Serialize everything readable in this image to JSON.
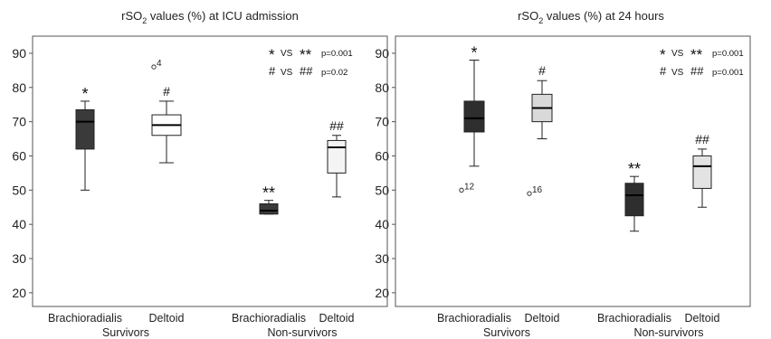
{
  "chart_data": [
    {
      "type": "box",
      "title_parts": [
        "rSO",
        "2",
        " values (%) at ICU admission"
      ],
      "yticks": [
        20,
        30,
        40,
        50,
        60,
        70,
        80,
        90
      ],
      "ylim": [
        16,
        95
      ],
      "categories": [
        "Brachioradialis",
        "Deltoid",
        "Brachioradialis",
        "Deltoid"
      ],
      "groups": [
        "Survivors",
        "Non-survivors"
      ],
      "legend_lines": [
        {
          "a": "*",
          "vs": "VS",
          "b": "**",
          "p": "p=0.001"
        },
        {
          "a": "#",
          "vs": "VS",
          "b": "##",
          "p": "p=0.02"
        }
      ],
      "boxes": [
        {
          "category": "Brachioradialis",
          "group": "Survivors",
          "whisker_low": 50,
          "q1": 62,
          "median": 70,
          "q3": 73.5,
          "whisker_high": 76,
          "marker": "*",
          "color": "#3a3a3a",
          "outliers": []
        },
        {
          "category": "Deltoid",
          "group": "Survivors",
          "whisker_low": 58,
          "q1": 66,
          "median": 69,
          "q3": 72,
          "whisker_high": 76,
          "marker": "#",
          "color": "#ffffff",
          "outliers": [
            {
              "value": 86,
              "label": "4"
            }
          ]
        },
        {
          "category": "Brachioradialis",
          "group": "Non-survivors",
          "whisker_low": 43,
          "q1": 43,
          "median": 44,
          "q3": 46,
          "whisker_high": 47,
          "marker": "**",
          "color": "#3a3a3a",
          "outliers": []
        },
        {
          "category": "Deltoid",
          "group": "Non-survivors",
          "whisker_low": 48,
          "q1": 55,
          "median": 62.5,
          "q3": 64.5,
          "whisker_high": 66,
          "marker": "##",
          "color": "#f4f4f4",
          "outliers": []
        }
      ]
    },
    {
      "type": "box",
      "title_parts": [
        "rSO",
        "2",
        " values (%) at 24 hours"
      ],
      "yticks": [
        20,
        30,
        40,
        50,
        60,
        70,
        80,
        90
      ],
      "ylim": [
        16,
        95
      ],
      "categories": [
        "Brachioradialis",
        "Deltoid",
        "Brachioradialis",
        "Deltoid"
      ],
      "groups": [
        "Survivors",
        "Non-survivors"
      ],
      "legend_lines": [
        {
          "a": "*",
          "vs": "VS",
          "b": "**",
          "p": "p=0.001"
        },
        {
          "a": "#",
          "vs": "VS",
          "b": "##",
          "p": "p=0.001"
        }
      ],
      "boxes": [
        {
          "category": "Brachioradialis",
          "group": "Survivors",
          "whisker_low": 57,
          "q1": 67,
          "median": 71,
          "q3": 76,
          "whisker_high": 88,
          "marker": "*",
          "color": "#2e2e2e",
          "outliers": [
            {
              "value": 50,
              "label": "12"
            }
          ]
        },
        {
          "category": "Deltoid",
          "group": "Survivors",
          "whisker_low": 65,
          "q1": 70,
          "median": 74,
          "q3": 78,
          "whisker_high": 82,
          "marker": "#",
          "color": "#d9d9d9",
          "outliers": [
            {
              "value": 49,
              "label": "16"
            }
          ]
        },
        {
          "category": "Brachioradialis",
          "group": "Non-survivors",
          "whisker_low": 38,
          "q1": 42.5,
          "median": 48.5,
          "q3": 52,
          "whisker_high": 54,
          "marker": "**",
          "color": "#2e2e2e",
          "outliers": []
        },
        {
          "category": "Deltoid",
          "group": "Non-survivors",
          "whisker_low": 45,
          "q1": 50.5,
          "median": 57,
          "q3": 60,
          "whisker_high": 62,
          "marker": "##",
          "color": "#e3e3e3",
          "outliers": []
        }
      ]
    }
  ]
}
